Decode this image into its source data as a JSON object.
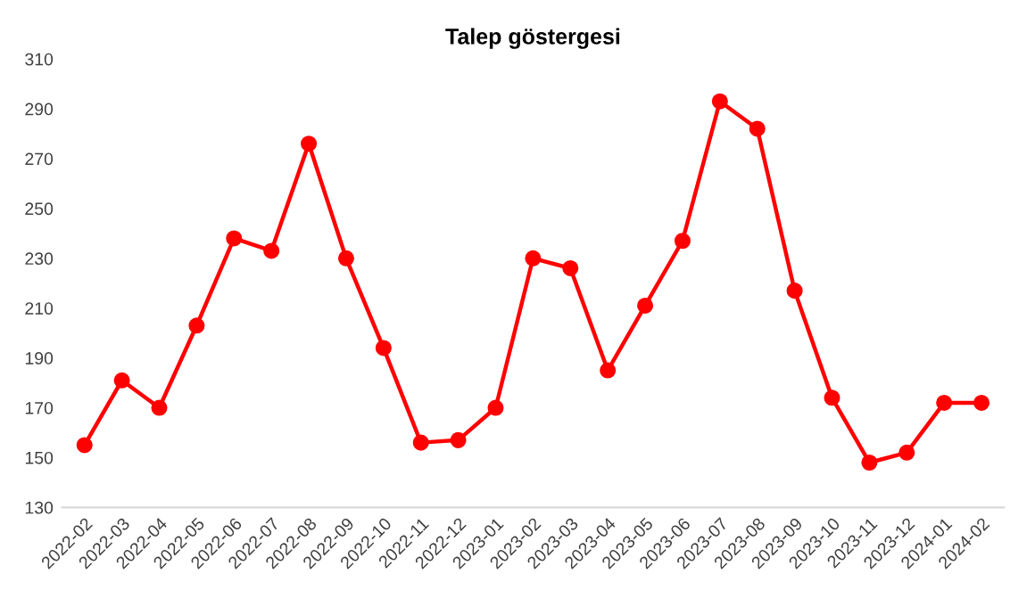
{
  "chart_data": {
    "type": "line",
    "title": "Talep göstergesi",
    "categories": [
      "2022-02",
      "2022-03",
      "2022-04",
      "2022-05",
      "2022-06",
      "2022-07",
      "2022-08",
      "2022-09",
      "2022-10",
      "2022-11",
      "2022-12",
      "2023-01",
      "2023-02",
      "2023-03",
      "2023-04",
      "2023-05",
      "2023-06",
      "2023-07",
      "2023-08",
      "2023-09",
      "2023-10",
      "2023-11",
      "2023-12",
      "2024-01",
      "2024-02"
    ],
    "series": [
      {
        "color": "#ff0000",
        "values": [
          155,
          181,
          170,
          203,
          238,
          233,
          276,
          230,
          194,
          156,
          157,
          170,
          230,
          226,
          185,
          211,
          237,
          293,
          282,
          217,
          174,
          148,
          152,
          172,
          172
        ]
      }
    ],
    "ylim": [
      130,
      310
    ],
    "yticks": [
      130,
      150,
      170,
      190,
      210,
      230,
      250,
      270,
      290,
      310
    ],
    "grid": false,
    "marker": "circle",
    "line_style": "solid"
  }
}
